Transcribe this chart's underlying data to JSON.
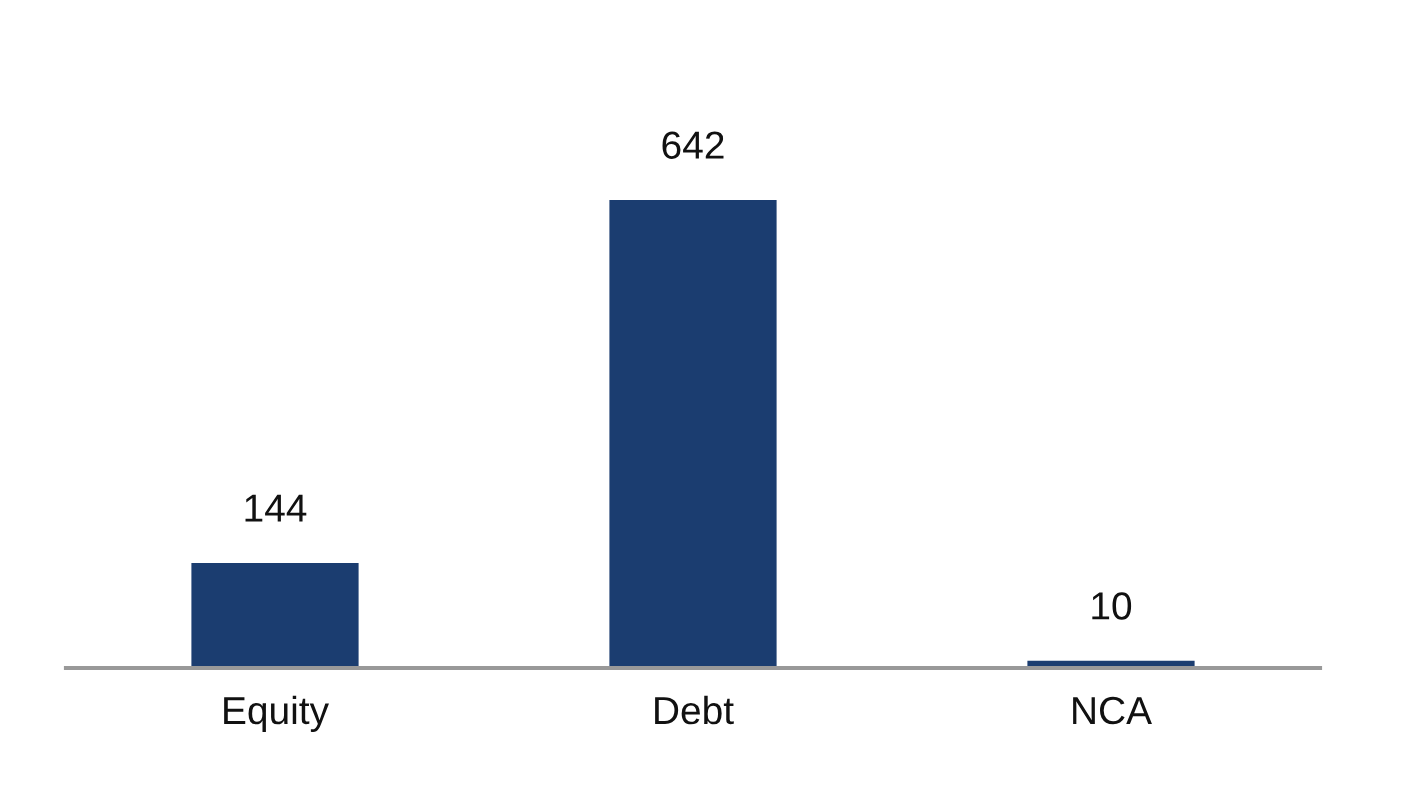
{
  "chart_data": {
    "type": "bar",
    "categories": [
      "Equity",
      "Debt",
      "NCA"
    ],
    "values": [
      144,
      642,
      10
    ],
    "color": "#1b3d70",
    "data_labels": true,
    "grid": false,
    "legend": false
  }
}
